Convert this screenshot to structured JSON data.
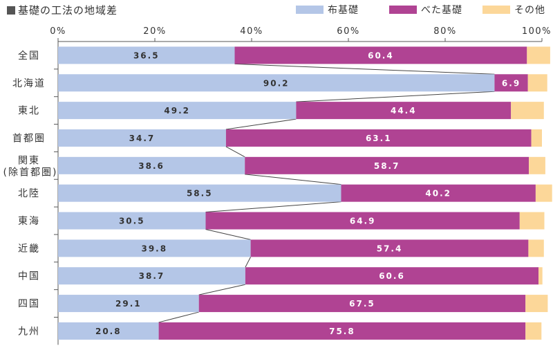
{
  "chart_data": {
    "type": "bar",
    "orientation": "horizontal",
    "stacked": true,
    "title": "基礎の工法の地域差",
    "categories": [
      "全国",
      "北海道",
      "東北",
      "首都圏",
      "関東\n(除首都圏)",
      "北陸",
      "東海",
      "近畿",
      "中国",
      "四国",
      "九州"
    ],
    "series": [
      {
        "name": "布基礎",
        "color": "#b4c6e7",
        "labelColor": "#333333",
        "values": [
          36.5,
          90.2,
          49.2,
          34.7,
          38.6,
          58.5,
          30.5,
          39.8,
          38.7,
          29.1,
          20.8
        ]
      },
      {
        "name": "べた基礎",
        "color": "#b04393",
        "labelColor": "#ffffff",
        "values": [
          60.4,
          6.9,
          44.4,
          63.1,
          58.7,
          40.2,
          64.9,
          57.4,
          60.6,
          67.5,
          75.8
        ]
      },
      {
        "name": "その他",
        "color": "#fcd799",
        "labelColor": null,
        "values": [
          4.8,
          4.0,
          6.8,
          2.2,
          3.4,
          3.4,
          5.1,
          3.2,
          0.8,
          4.6,
          3.3
        ]
      }
    ],
    "xticks": [
      "0%",
      "20%",
      "40%",
      "60%",
      "80%",
      "100%"
    ],
    "xlim": [
      0,
      100
    ],
    "legend_position": "top-right",
    "connector_lines": true
  }
}
